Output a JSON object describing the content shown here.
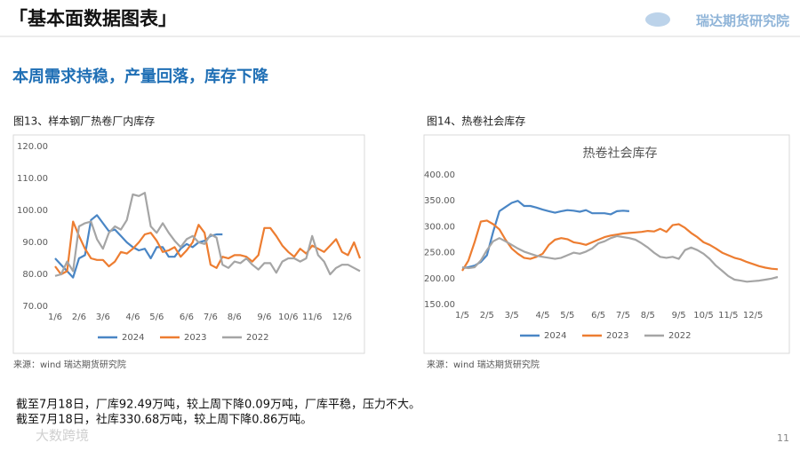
{
  "header": {
    "title": "「基本面数据图表」",
    "logo": "瑞达期货研究院"
  },
  "subtitle": "本周需求持稳，产量回落，库存下降",
  "chart_data": [
    {
      "type": "line",
      "caption": "图13、样本钢厂热卷厂内库存",
      "source": "来源：wind   瑞达期货研究院",
      "categories": [
        "1/6",
        null,
        null,
        null,
        "2/6",
        null,
        null,
        null,
        "3/6",
        null,
        null,
        null,
        null,
        "4/6",
        null,
        null,
        null,
        "5/6",
        null,
        null,
        null,
        null,
        "6/6",
        null,
        null,
        null,
        "7/6",
        null,
        null,
        null,
        "8/6",
        null,
        null,
        null,
        null,
        "9/6",
        null,
        null,
        null,
        "10/6",
        null,
        null,
        null,
        "11/6",
        null,
        null,
        null,
        null,
        "12/6",
        null,
        null,
        null
      ],
      "ylim": [
        70,
        120
      ],
      "yticks": [
        {
          "value": 70,
          "label": "70.00"
        },
        {
          "value": 80,
          "label": "80.00"
        },
        {
          "value": 90,
          "label": "90.00"
        },
        {
          "value": 100,
          "label": "100.00"
        },
        {
          "value": 110,
          "label": "110.00"
        },
        {
          "value": 120,
          "label": "120.00"
        }
      ],
      "grid": false,
      "legend": "bottom",
      "series": [
        {
          "name": "2024",
          "color": "#4a86c5",
          "values": [
            85,
            83,
            81,
            79,
            85,
            86,
            97,
            98.5,
            96,
            93.5,
            94,
            92,
            90,
            88.5,
            87.5,
            88,
            85,
            88.5,
            88.5,
            85.5,
            85.5,
            88,
            89.5,
            88.5,
            90,
            90.5,
            92,
            92.5,
            92.5,
            null,
            null,
            null,
            null,
            null,
            null,
            null,
            null,
            null,
            null,
            null,
            null,
            null,
            null,
            null,
            null,
            null,
            null,
            null,
            null,
            null,
            null,
            null
          ]
        },
        {
          "name": "2023",
          "color": "#ed7d31",
          "values": [
            82.5,
            80,
            81,
            96.5,
            92,
            88,
            85,
            84.5,
            84.5,
            82.5,
            84,
            87,
            86.5,
            88,
            90,
            92.5,
            93,
            90.5,
            87,
            87.5,
            88.5,
            85.5,
            87.5,
            90,
            95.5,
            93,
            83,
            82,
            85.5,
            85,
            86,
            86,
            85.5,
            84,
            86,
            94.5,
            94.5,
            92,
            89,
            87,
            85.5,
            88,
            86.5,
            89,
            88,
            87,
            89,
            91,
            87,
            86,
            90,
            85
          ]
        },
        {
          "name": "2022",
          "color": "#a5a5a5",
          "values": [
            79.5,
            80,
            84,
            81,
            95,
            96,
            96.5,
            91,
            88,
            93,
            95,
            94,
            97,
            105,
            104.5,
            105.5,
            95,
            93,
            96,
            93,
            90.5,
            88.5,
            91,
            92,
            90,
            89.5,
            92.5,
            91.5,
            83,
            82,
            84,
            83.5,
            85,
            83,
            81.5,
            83.5,
            83.5,
            80.5,
            84,
            85,
            85,
            84,
            85,
            92,
            86,
            84,
            80,
            82,
            83,
            83,
            82,
            81
          ]
        }
      ]
    },
    {
      "type": "line",
      "caption": "图14、热卷社会库存",
      "title": "热卷社会库存",
      "source": "来源：wind   瑞达期货研究院",
      "categories": [
        "1/5",
        null,
        null,
        null,
        "2/5",
        null,
        null,
        null,
        "3/5",
        null,
        null,
        null,
        null,
        "4/5",
        null,
        null,
        null,
        "5/5",
        null,
        null,
        null,
        null,
        "6/5",
        null,
        null,
        null,
        "7/5",
        null,
        null,
        null,
        "8/5",
        null,
        null,
        null,
        null,
        "9/5",
        null,
        null,
        null,
        "10/5",
        null,
        null,
        null,
        "11/5",
        null,
        null,
        null,
        "12/5",
        null,
        null,
        null,
        null
      ],
      "ylim": [
        150,
        400
      ],
      "yticks": [
        {
          "value": 150,
          "label": "150.00"
        },
        {
          "value": 200,
          "label": "200.00"
        },
        {
          "value": 250,
          "label": "250.00"
        },
        {
          "value": 300,
          "label": "300.00"
        },
        {
          "value": 350,
          "label": "350.00"
        },
        {
          "value": 400,
          "label": "400.00"
        }
      ],
      "grid": false,
      "legend": "bottom",
      "series": [
        {
          "name": "2024",
          "color": "#4a86c5",
          "values": [
            220,
            222,
            225,
            232,
            245,
            290,
            330,
            338,
            346,
            350,
            340,
            340,
            337,
            333,
            330,
            327,
            330,
            332,
            331,
            329,
            332,
            326,
            326,
            326,
            324,
            330,
            331,
            330,
            null,
            null,
            null,
            null,
            null,
            null,
            null,
            null,
            null,
            null,
            null,
            null,
            null,
            null,
            null,
            null,
            null,
            null,
            null,
            null,
            null,
            null,
            null,
            null
          ]
        },
        {
          "name": "2023",
          "color": "#ed7d31",
          "values": [
            215,
            235,
            270,
            310,
            312,
            305,
            295,
            275,
            258,
            248,
            240,
            238,
            242,
            248,
            265,
            275,
            278,
            276,
            270,
            268,
            265,
            270,
            275,
            280,
            283,
            285,
            287,
            288,
            289,
            290,
            292,
            291,
            296,
            290,
            303,
            305,
            298,
            288,
            280,
            270,
            265,
            258,
            250,
            245,
            240,
            237,
            232,
            228,
            224,
            221,
            219,
            218
          ]
        },
        {
          "name": "2022",
          "color": "#a5a5a5",
          "values": [
            222,
            220,
            222,
            235,
            255,
            272,
            278,
            272,
            265,
            258,
            252,
            248,
            244,
            242,
            240,
            238,
            240,
            245,
            250,
            248,
            252,
            258,
            268,
            272,
            278,
            282,
            280,
            278,
            275,
            268,
            260,
            250,
            242,
            240,
            242,
            238,
            255,
            260,
            255,
            248,
            238,
            225,
            215,
            205,
            198,
            196,
            194,
            195,
            196,
            198,
            200,
            203
          ]
        }
      ]
    }
  ],
  "notes": [
    "截至7月18日，厂库92.49万吨，较上周下降0.09万吨，厂库平稳，压力不大。",
    "截至7月18日，社库330.68万吨，较上周下降0.86万吨。"
  ],
  "watermark": "大数跨境",
  "page_number": "11"
}
